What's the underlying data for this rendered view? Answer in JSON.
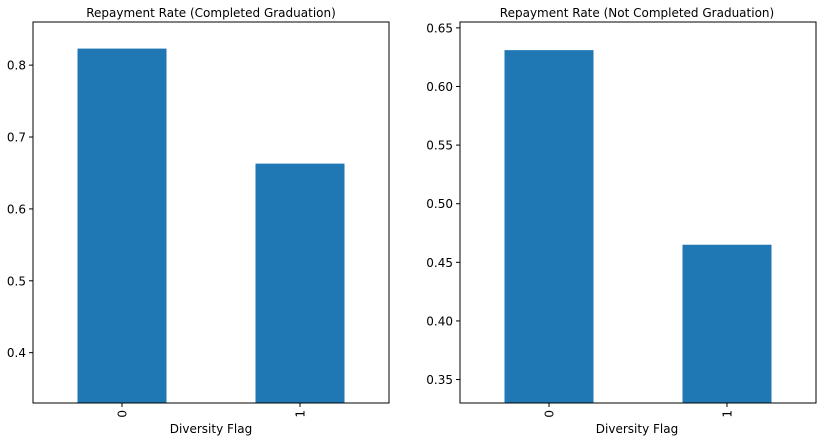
{
  "chart_data": [
    {
      "type": "bar",
      "title": "Repayment Rate (Completed Graduation)",
      "xlabel": "Diversity Flag",
      "ylabel": "",
      "categories": [
        "0",
        "1"
      ],
      "values": [
        0.823,
        0.663
      ],
      "ylim": [
        0.33,
        0.86
      ],
      "yticks": [
        0.4,
        0.5,
        0.6,
        0.7,
        0.8
      ],
      "ytick_labels": [
        "0.4",
        "0.5",
        "0.6",
        "0.7",
        "0.8"
      ],
      "color": "#1f77b4",
      "grid": false,
      "legend": "none"
    },
    {
      "type": "bar",
      "title": "Repayment Rate (Not Completed Graduation)",
      "xlabel": "Diversity Flag",
      "ylabel": "",
      "categories": [
        "0",
        "1"
      ],
      "values": [
        0.631,
        0.465
      ],
      "ylim": [
        0.33,
        0.655
      ],
      "yticks": [
        0.35,
        0.4,
        0.45,
        0.5,
        0.55,
        0.6,
        0.65
      ],
      "ytick_labels": [
        "0.35",
        "0.40",
        "0.45",
        "0.50",
        "0.55",
        "0.60",
        "0.65"
      ],
      "color": "#1f77b4",
      "grid": false,
      "legend": "none"
    }
  ]
}
